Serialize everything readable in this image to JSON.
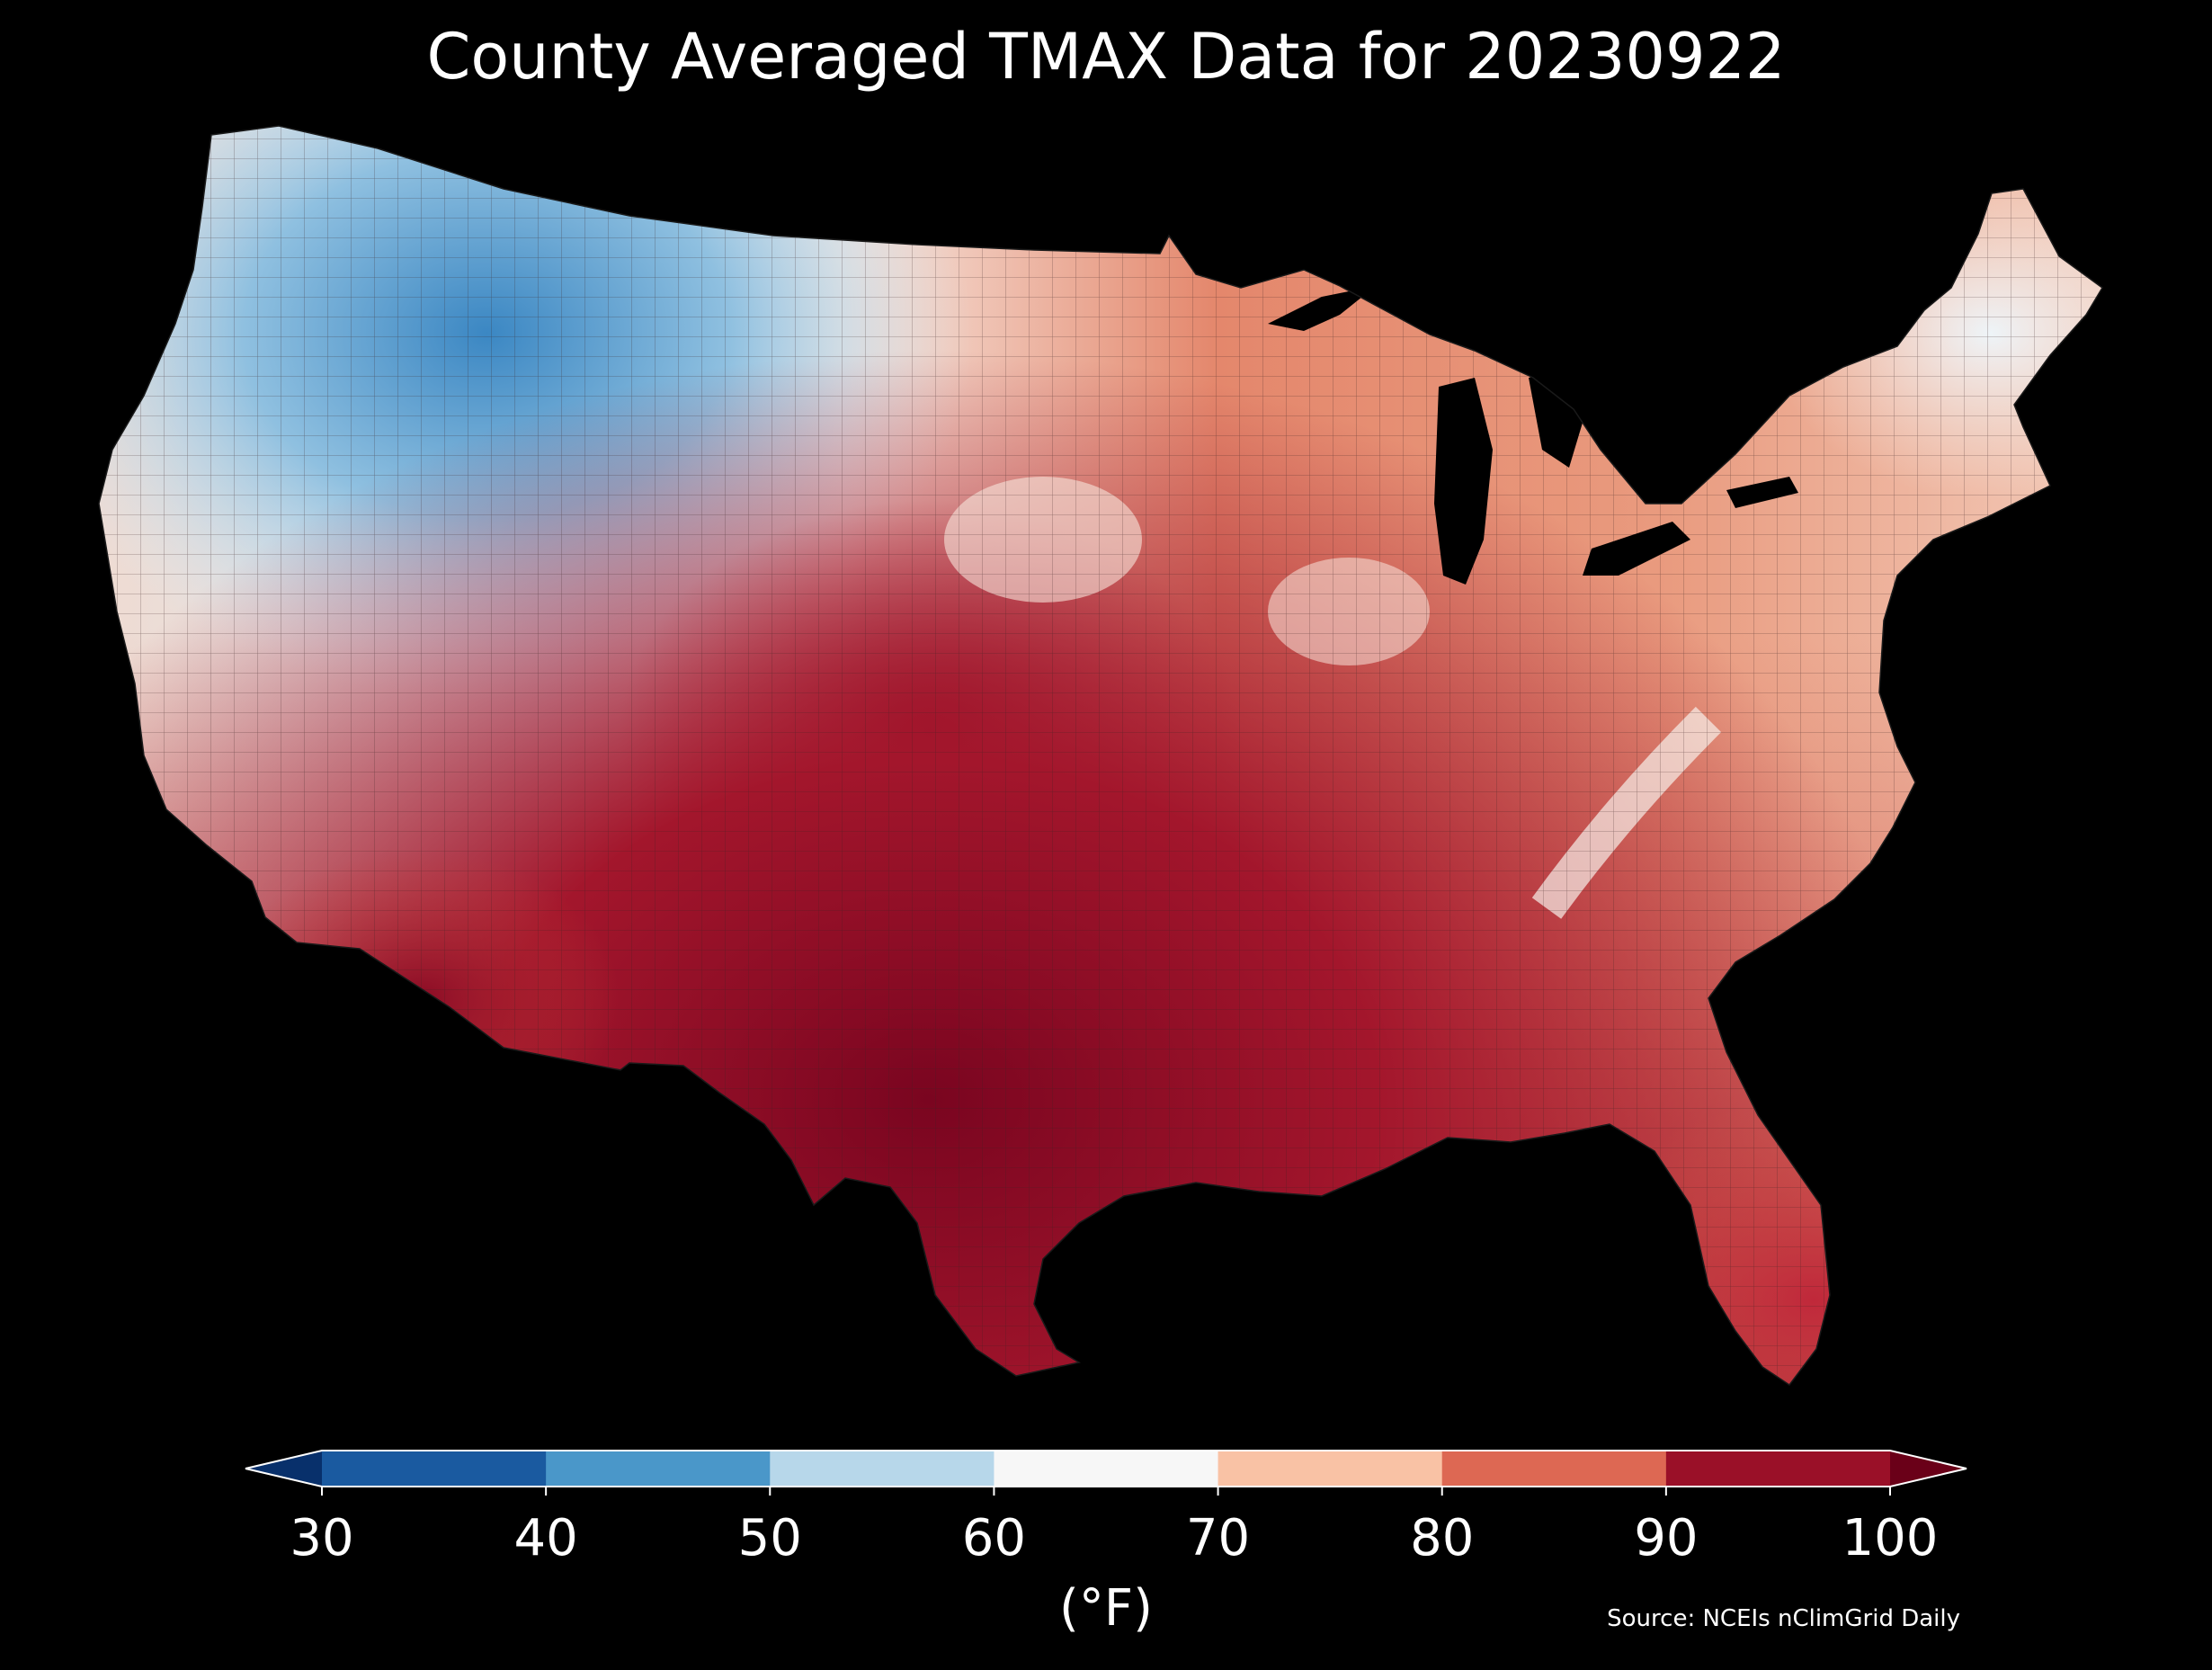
{
  "title": "County Averaged TMAX Data for 20230922",
  "colorbar": {
    "unit": "(°F)",
    "ticks": [
      "30",
      "40",
      "50",
      "60",
      "70",
      "80",
      "90",
      "100"
    ],
    "colors": [
      "#08306b",
      "#1a5aa0",
      "#4a97c9",
      "#b7d7ea",
      "#f7f7f7",
      "#f9c2a5",
      "#dd6853",
      "#9a1028",
      "#6a0018"
    ],
    "extend": "both"
  },
  "source": "Source: NCEIs nClimGrid Daily",
  "map": {
    "region": "Contiguous United States",
    "variable": "TMAX",
    "background": "#000000",
    "border_color": "#1a1a1a"
  }
}
